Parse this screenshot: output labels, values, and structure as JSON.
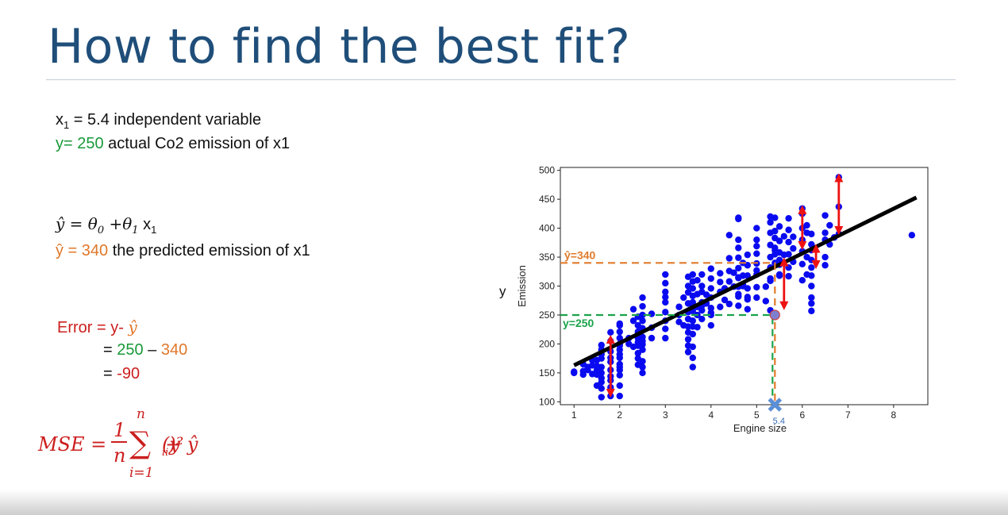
{
  "slide": {
    "title": "How to find the best fit?",
    "x1_line": {
      "var": "x",
      "sub": "1",
      "rest": " = 5.4  independent variable"
    },
    "y_line": {
      "value": "y= 250",
      "rest": " actual Co2 emission of x1"
    },
    "model": {
      "lhs": "ŷ = θ",
      "s0": "0",
      "mid": " +θ",
      "s1": "1",
      "x": " x",
      "sx": "1"
    },
    "pred_line": {
      "value": "ŷ = 340",
      "rest": " the predicted emission of x1"
    },
    "error": {
      "l1_label": "Error = ",
      "l1_y": "y- ",
      "l1_yhat": "ŷ",
      "l2_eq": "= ",
      "l2_a": "250",
      "l2_op": " – ",
      "l2_b": "340",
      "l3_eq": "= ",
      "l3_val": "-90"
    },
    "mse": {
      "lhs": "MSE = ",
      "num": "1",
      "den": "n",
      "sigma": "∑",
      "top": "n",
      "bottom": "i=1",
      "body": "(y",
      "i1": "i",
      "minus": " − ŷ",
      "i2": "i",
      "close": ")²"
    }
  },
  "chart_data": {
    "type": "scatter",
    "xlabel": "Engine size",
    "ylabel": "Emission",
    "outer_ylabel": "y",
    "xlim": [
      0.7,
      8.75
    ],
    "ylim": [
      95,
      505
    ],
    "xticks": [
      1,
      2,
      3,
      4,
      5,
      6,
      7,
      8
    ],
    "yticks": [
      100,
      150,
      200,
      250,
      300,
      350,
      400,
      450,
      500
    ],
    "grid": false,
    "colors": {
      "points": "#0a0af0",
      "fit": "#000000",
      "error": "#ee1111",
      "y_line": "#1aa34a",
      "yhat_line": "#e07b2c",
      "marker": "#5b8fd6",
      "highlight": "#7f7fd0"
    },
    "fit_line": {
      "x": [
        1.0,
        8.5
      ],
      "y": [
        163,
        453
      ]
    },
    "highlight_point": {
      "x": 5.4,
      "y": 250,
      "y_label": "y=250",
      "yhat": 340,
      "yhat_label": "ŷ=340",
      "x_label": "5.4"
    },
    "error_bars": [
      {
        "x": 1.8,
        "y1": 208,
        "y2": 115
      },
      {
        "x": 5.6,
        "y1": 342,
        "y2": 266
      },
      {
        "x": 6.0,
        "y1": 432,
        "y2": 370
      },
      {
        "x": 6.3,
        "y1": 365,
        "y2": 337
      },
      {
        "x": 6.8,
        "y1": 487,
        "y2": 396
      }
    ],
    "points": [
      [
        1.0,
        152
      ],
      [
        1.0,
        150
      ],
      [
        1.2,
        153
      ],
      [
        1.2,
        165
      ],
      [
        1.2,
        147
      ],
      [
        1.3,
        155
      ],
      [
        1.3,
        160
      ],
      [
        1.4,
        148
      ],
      [
        1.4,
        163
      ],
      [
        1.4,
        172
      ],
      [
        1.5,
        162
      ],
      [
        1.5,
        147
      ],
      [
        1.5,
        155
      ],
      [
        1.5,
        128
      ],
      [
        1.5,
        172
      ],
      [
        1.6,
        150
      ],
      [
        1.6,
        182
      ],
      [
        1.6,
        160
      ],
      [
        1.6,
        134
      ],
      [
        1.6,
        141
      ],
      [
        1.6,
        108
      ],
      [
        1.6,
        123
      ],
      [
        1.6,
        175
      ],
      [
        1.6,
        190
      ],
      [
        1.6,
        198
      ],
      [
        1.8,
        137
      ],
      [
        1.8,
        187
      ],
      [
        1.8,
        220
      ],
      [
        1.8,
        176
      ],
      [
        1.8,
        155
      ],
      [
        1.8,
        110
      ],
      [
        1.8,
        144
      ],
      [
        1.8,
        169
      ],
      [
        1.8,
        205
      ],
      [
        1.8,
        125
      ],
      [
        2.0,
        165
      ],
      [
        2.0,
        210
      ],
      [
        2.0,
        200
      ],
      [
        2.0,
        190
      ],
      [
        2.0,
        221
      ],
      [
        2.0,
        110
      ],
      [
        2.0,
        146
      ],
      [
        2.0,
        176
      ],
      [
        2.0,
        182
      ],
      [
        2.0,
        235
      ],
      [
        2.0,
        128
      ],
      [
        2.0,
        155
      ],
      [
        2.0,
        160
      ],
      [
        2.0,
        232
      ],
      [
        2.0,
        197
      ],
      [
        2.2,
        210
      ],
      [
        2.2,
        200
      ],
      [
        2.3,
        195
      ],
      [
        2.3,
        240
      ],
      [
        2.3,
        260
      ],
      [
        2.4,
        210
      ],
      [
        2.4,
        232
      ],
      [
        2.4,
        203
      ],
      [
        2.4,
        197
      ],
      [
        2.4,
        247
      ],
      [
        2.4,
        164
      ],
      [
        2.4,
        175
      ],
      [
        2.4,
        184
      ],
      [
        2.4,
        221
      ],
      [
        2.5,
        190
      ],
      [
        2.5,
        205
      ],
      [
        2.5,
        240
      ],
      [
        2.5,
        227
      ],
      [
        2.5,
        250
      ],
      [
        2.5,
        265
      ],
      [
        2.5,
        280
      ],
      [
        2.5,
        212
      ],
      [
        2.5,
        199
      ],
      [
        2.5,
        160
      ],
      [
        2.5,
        150
      ],
      [
        2.5,
        170
      ],
      [
        2.7,
        252
      ],
      [
        2.7,
        228
      ],
      [
        2.7,
        210
      ],
      [
        3.0,
        240
      ],
      [
        3.0,
        255
      ],
      [
        3.0,
        272
      ],
      [
        3.0,
        290
      ],
      [
        3.0,
        305
      ],
      [
        3.0,
        320
      ],
      [
        3.0,
        226
      ],
      [
        3.0,
        210
      ],
      [
        3.0,
        281
      ],
      [
        3.3,
        238
      ],
      [
        3.3,
        250
      ],
      [
        3.3,
        264
      ],
      [
        3.4,
        280
      ],
      [
        3.4,
        232
      ],
      [
        3.5,
        230
      ],
      [
        3.5,
        220
      ],
      [
        3.5,
        243
      ],
      [
        3.5,
        255
      ],
      [
        3.5,
        270
      ],
      [
        3.5,
        300
      ],
      [
        3.5,
        316
      ],
      [
        3.5,
        197
      ],
      [
        3.5,
        186
      ],
      [
        3.5,
        208
      ],
      [
        3.5,
        289
      ],
      [
        3.6,
        230
      ],
      [
        3.6,
        240
      ],
      [
        3.6,
        257
      ],
      [
        3.6,
        268
      ],
      [
        3.6,
        283
      ],
      [
        3.6,
        296
      ],
      [
        3.6,
        308
      ],
      [
        3.6,
        320
      ],
      [
        3.6,
        217
      ],
      [
        3.6,
        195
      ],
      [
        3.6,
        176
      ],
      [
        3.6,
        160
      ],
      [
        3.6,
        272
      ],
      [
        3.7,
        250
      ],
      [
        3.7,
        264
      ],
      [
        3.7,
        286
      ],
      [
        3.7,
        310
      ],
      [
        3.7,
        229
      ],
      [
        3.8,
        243
      ],
      [
        3.8,
        258
      ],
      [
        3.8,
        272
      ],
      [
        3.8,
        290
      ],
      [
        3.8,
        300
      ],
      [
        3.8,
        320
      ],
      [
        3.8,
        266
      ],
      [
        3.9,
        285
      ],
      [
        3.9,
        270
      ],
      [
        4.0,
        232
      ],
      [
        4.0,
        250
      ],
      [
        4.0,
        262
      ],
      [
        4.0,
        280
      ],
      [
        4.0,
        296
      ],
      [
        4.0,
        313
      ],
      [
        4.0,
        330
      ],
      [
        4.0,
        254
      ],
      [
        4.2,
        290
      ],
      [
        4.2,
        307
      ],
      [
        4.2,
        322
      ],
      [
        4.2,
        264
      ],
      [
        4.3,
        276
      ],
      [
        4.3,
        296
      ],
      [
        4.4,
        308
      ],
      [
        4.4,
        326
      ],
      [
        4.4,
        348
      ],
      [
        4.4,
        388
      ],
      [
        4.4,
        269
      ],
      [
        4.5,
        299
      ],
      [
        4.5,
        323
      ],
      [
        4.6,
        282
      ],
      [
        4.6,
        299
      ],
      [
        4.6,
        314
      ],
      [
        4.6,
        331
      ],
      [
        4.6,
        349
      ],
      [
        4.6,
        366
      ],
      [
        4.6,
        266
      ],
      [
        4.6,
        380
      ],
      [
        4.6,
        418
      ],
      [
        4.6,
        416
      ],
      [
        4.6,
        315
      ],
      [
        4.6,
        286
      ],
      [
        4.7,
        300
      ],
      [
        4.7,
        318
      ],
      [
        4.7,
        340
      ],
      [
        4.7,
        302
      ],
      [
        4.8,
        277
      ],
      [
        4.8,
        296
      ],
      [
        4.8,
        318
      ],
      [
        4.8,
        336
      ],
      [
        4.8,
        354
      ],
      [
        4.8,
        260
      ],
      [
        4.8,
        281
      ],
      [
        5.0,
        298
      ],
      [
        5.0,
        320
      ],
      [
        5.0,
        339
      ],
      [
        5.0,
        356
      ],
      [
        5.0,
        369
      ],
      [
        5.0,
        280
      ],
      [
        5.0,
        380
      ],
      [
        5.0,
        400
      ],
      [
        5.0,
        327
      ],
      [
        5.2,
        274
      ],
      [
        5.2,
        299
      ],
      [
        5.3,
        313
      ],
      [
        5.3,
        332
      ],
      [
        5.3,
        350
      ],
      [
        5.3,
        371
      ],
      [
        5.3,
        392
      ],
      [
        5.3,
        410
      ],
      [
        5.3,
        420
      ],
      [
        5.3,
        258
      ],
      [
        5.3,
        309
      ],
      [
        5.4,
        340
      ],
      [
        5.4,
        355
      ],
      [
        5.4,
        366
      ],
      [
        5.4,
        383
      ],
      [
        5.4,
        395
      ],
      [
        5.4,
        418
      ],
      [
        5.4,
        362
      ],
      [
        5.5,
        318
      ],
      [
        5.5,
        337
      ],
      [
        5.5,
        358
      ],
      [
        5.5,
        378
      ],
      [
        5.5,
        403
      ],
      [
        5.5,
        345
      ],
      [
        5.5,
        320
      ],
      [
        5.6,
        386
      ],
      [
        5.6,
        354
      ],
      [
        5.7,
        332
      ],
      [
        5.7,
        355
      ],
      [
        5.7,
        376
      ],
      [
        5.7,
        397
      ],
      [
        5.7,
        417
      ],
      [
        5.7,
        317
      ],
      [
        5.8,
        342
      ],
      [
        5.8,
        365
      ],
      [
        5.8,
        385
      ],
      [
        6.0,
        380
      ],
      [
        6.0,
        360
      ],
      [
        6.0,
        338
      ],
      [
        6.0,
        400
      ],
      [
        6.0,
        425
      ],
      [
        6.0,
        434
      ],
      [
        6.0,
        310
      ],
      [
        6.1,
        350
      ],
      [
        6.1,
        392
      ],
      [
        6.1,
        405
      ],
      [
        6.1,
        320
      ],
      [
        6.2,
        300
      ],
      [
        6.2,
        280
      ],
      [
        6.2,
        257
      ],
      [
        6.2,
        270
      ],
      [
        6.2,
        332
      ],
      [
        6.2,
        345
      ],
      [
        6.2,
        372
      ],
      [
        6.2,
        390
      ],
      [
        6.2,
        318
      ],
      [
        6.2,
        362
      ],
      [
        6.5,
        350
      ],
      [
        6.5,
        336
      ],
      [
        6.5,
        380
      ],
      [
        6.5,
        392
      ],
      [
        6.5,
        422
      ],
      [
        6.6,
        372
      ],
      [
        6.6,
        405
      ],
      [
        6.7,
        384
      ],
      [
        6.8,
        488
      ],
      [
        6.8,
        437
      ],
      [
        6.8,
        390
      ],
      [
        8.4,
        388
      ]
    ]
  }
}
